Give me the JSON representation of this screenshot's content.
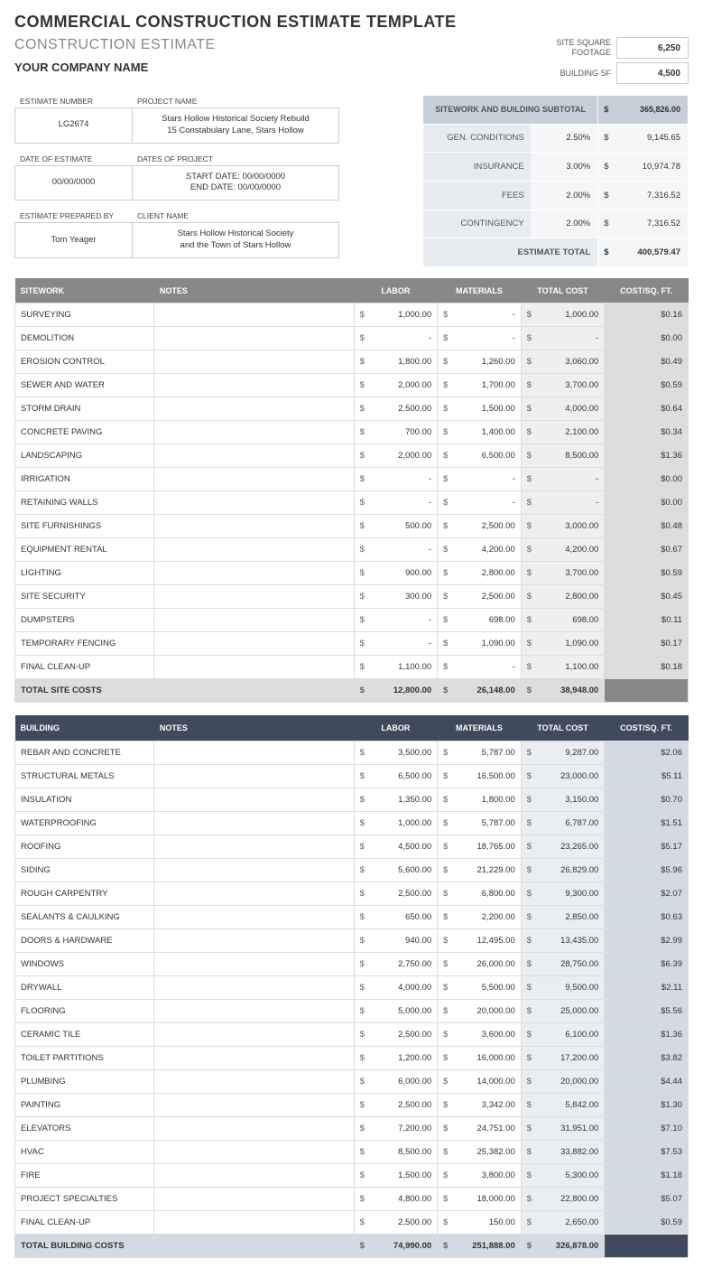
{
  "titles": {
    "main": "COMMERCIAL CONSTRUCTION ESTIMATE TEMPLATE",
    "sub": "CONSTRUCTION ESTIMATE",
    "company": "YOUR COMPANY NAME"
  },
  "sf": {
    "site_label": "SITE SQUARE FOOTAGE",
    "site_value": "6,250",
    "building_label": "BUILDING SF",
    "building_value": "4,500"
  },
  "info": {
    "estimate_number_label": "ESTIMATE NUMBER",
    "project_name_label": "PROJECT NAME",
    "estimate_number": "LG2674",
    "project_name": "Stars Hollow Historical Society Rebuild\n15 Constabulary Lane, Stars Hollow",
    "date_estimate_label": "DATE OF ESTIMATE",
    "dates_project_label": "DATES OF PROJECT",
    "date_estimate": "00/00/0000",
    "dates_project": "START DATE: 00/00/0000\nEND DATE: 00/00/0000",
    "prepared_label": "ESTIMATE PREPARED BY",
    "client_label": "CLIENT NAME",
    "prepared": "Tom Yeager",
    "client": "Stars Hollow Historical Society\nand the Town of Stars Hollow"
  },
  "subtotal": {
    "header": "SITEWORK AND BUILDING SUBTOTAL",
    "header_amt": "365,826.00",
    "rows": [
      {
        "label": "GEN. CONDITIONS",
        "pct": "2.50%",
        "amt": "9,145.65"
      },
      {
        "label": "INSURANCE",
        "pct": "3.00%",
        "amt": "10,974.78"
      },
      {
        "label": "FEES",
        "pct": "2.00%",
        "amt": "7,316.52"
      },
      {
        "label": "CONTINGENCY",
        "pct": "2.00%",
        "amt": "7,316.52"
      }
    ],
    "total_label": "ESTIMATE TOTAL",
    "total_amt": "400,579.47"
  },
  "sitework": {
    "headers": [
      "SITEWORK",
      "NOTES",
      "LABOR",
      "MATERIALS",
      "TOTAL COST",
      "COST/SQ. FT."
    ],
    "rows": [
      {
        "name": "SURVEYING",
        "labor": "1,000.00",
        "materials": "-",
        "total": "1,000.00",
        "sq": "$0.16"
      },
      {
        "name": "DEMOLITION",
        "labor": "-",
        "materials": "-",
        "total": "-",
        "sq": "$0.00"
      },
      {
        "name": "EROSION CONTROL",
        "labor": "1,800.00",
        "materials": "1,260.00",
        "total": "3,060.00",
        "sq": "$0.49"
      },
      {
        "name": "SEWER AND WATER",
        "labor": "2,000.00",
        "materials": "1,700.00",
        "total": "3,700.00",
        "sq": "$0.59"
      },
      {
        "name": "STORM DRAIN",
        "labor": "2,500.00",
        "materials": "1,500.00",
        "total": "4,000.00",
        "sq": "$0.64"
      },
      {
        "name": "CONCRETE PAVING",
        "labor": "700.00",
        "materials": "1,400.00",
        "total": "2,100.00",
        "sq": "$0.34"
      },
      {
        "name": "LANDSCAPING",
        "labor": "2,000.00",
        "materials": "6,500.00",
        "total": "8,500.00",
        "sq": "$1.36"
      },
      {
        "name": "IRRIGATION",
        "labor": "-",
        "materials": "-",
        "total": "-",
        "sq": "$0.00"
      },
      {
        "name": "RETAINING WALLS",
        "labor": "-",
        "materials": "-",
        "total": "-",
        "sq": "$0.00"
      },
      {
        "name": "SITE FURNISHINGS",
        "labor": "500.00",
        "materials": "2,500.00",
        "total": "3,000.00",
        "sq": "$0.48"
      },
      {
        "name": "EQUIPMENT RENTAL",
        "labor": "-",
        "materials": "4,200.00",
        "total": "4,200.00",
        "sq": "$0.67"
      },
      {
        "name": "LIGHTING",
        "labor": "900.00",
        "materials": "2,800.00",
        "total": "3,700.00",
        "sq": "$0.59"
      },
      {
        "name": "SITE SECURITY",
        "labor": "300.00",
        "materials": "2,500.00",
        "total": "2,800.00",
        "sq": "$0.45"
      },
      {
        "name": "DUMPSTERS",
        "labor": "-",
        "materials": "698.00",
        "total": "698.00",
        "sq": "$0.11"
      },
      {
        "name": "TEMPORARY FENCING",
        "labor": "-",
        "materials": "1,090.00",
        "total": "1,090.00",
        "sq": "$0.17"
      },
      {
        "name": "FINAL CLEAN-UP",
        "labor": "1,100.00",
        "materials": "-",
        "total": "1,100.00",
        "sq": "$0.18"
      }
    ],
    "total_label": "TOTAL SITE COSTS",
    "total_labor": "12,800.00",
    "total_materials": "26,148.00",
    "total_cost": "38,948.00"
  },
  "building": {
    "headers": [
      "BUILDING",
      "NOTES",
      "LABOR",
      "MATERIALS",
      "TOTAL COST",
      "COST/SQ. FT."
    ],
    "rows": [
      {
        "name": "REBAR AND CONCRETE",
        "labor": "3,500.00",
        "materials": "5,787.00",
        "total": "9,287.00",
        "sq": "$2.06"
      },
      {
        "name": "STRUCTURAL METALS",
        "labor": "6,500.00",
        "materials": "16,500.00",
        "total": "23,000.00",
        "sq": "$5.11"
      },
      {
        "name": "INSULATION",
        "labor": "1,350.00",
        "materials": "1,800.00",
        "total": "3,150.00",
        "sq": "$0.70"
      },
      {
        "name": "WATERPROOFING",
        "labor": "1,000.00",
        "materials": "5,787.00",
        "total": "6,787.00",
        "sq": "$1.51"
      },
      {
        "name": "ROOFING",
        "labor": "4,500.00",
        "materials": "18,765.00",
        "total": "23,265.00",
        "sq": "$5.17"
      },
      {
        "name": "SIDING",
        "labor": "5,600.00",
        "materials": "21,229.00",
        "total": "26,829.00",
        "sq": "$5.96"
      },
      {
        "name": "ROUGH CARPENTRY",
        "labor": "2,500.00",
        "materials": "6,800.00",
        "total": "9,300.00",
        "sq": "$2.07"
      },
      {
        "name": "SEALANTS & CAULKING",
        "labor": "650.00",
        "materials": "2,200.00",
        "total": "2,850.00",
        "sq": "$0.63"
      },
      {
        "name": "DOORS & HARDWARE",
        "labor": "940.00",
        "materials": "12,495.00",
        "total": "13,435.00",
        "sq": "$2.99"
      },
      {
        "name": "WINDOWS",
        "labor": "2,750.00",
        "materials": "26,000.00",
        "total": "28,750.00",
        "sq": "$6.39"
      },
      {
        "name": "DRYWALL",
        "labor": "4,000.00",
        "materials": "5,500.00",
        "total": "9,500.00",
        "sq": "$2.11"
      },
      {
        "name": "FLOORING",
        "labor": "5,000.00",
        "materials": "20,000.00",
        "total": "25,000.00",
        "sq": "$5.56"
      },
      {
        "name": "CERAMIC TILE",
        "labor": "2,500.00",
        "materials": "3,600.00",
        "total": "6,100.00",
        "sq": "$1.36"
      },
      {
        "name": "TOILET PARTITIONS",
        "labor": "1,200.00",
        "materials": "16,000.00",
        "total": "17,200.00",
        "sq": "$3.82"
      },
      {
        "name": "PLUMBING",
        "labor": "6,000.00",
        "materials": "14,000.00",
        "total": "20,000.00",
        "sq": "$4.44"
      },
      {
        "name": "PAINTING",
        "labor": "2,500.00",
        "materials": "3,342.00",
        "total": "5,842.00",
        "sq": "$1.30"
      },
      {
        "name": "ELEVATORS",
        "labor": "7,200.00",
        "materials": "24,751.00",
        "total": "31,951.00",
        "sq": "$7.10"
      },
      {
        "name": "HVAC",
        "labor": "8,500.00",
        "materials": "25,382.00",
        "total": "33,882.00",
        "sq": "$7.53"
      },
      {
        "name": "FIRE",
        "labor": "1,500.00",
        "materials": "3,800.00",
        "total": "5,300.00",
        "sq": "$1.18"
      },
      {
        "name": "PROJECT SPECIALTIES",
        "labor": "4,800.00",
        "materials": "18,000.00",
        "total": "22,800.00",
        "sq": "$5.07"
      },
      {
        "name": "FINAL CLEAN-UP",
        "labor": "2,500.00",
        "materials": "150.00",
        "total": "2,650.00",
        "sq": "$0.59"
      }
    ],
    "total_label": "TOTAL BUILDING COSTS",
    "total_labor": "74,990.00",
    "total_materials": "251,888.00",
    "total_cost": "326,878.00"
  }
}
